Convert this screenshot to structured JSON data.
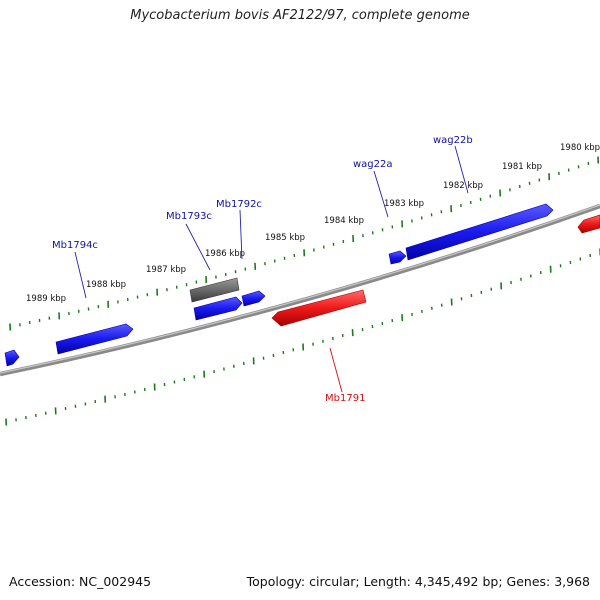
{
  "header": {
    "title": "Mycobacterium bovis AF2122/97, complete genome"
  },
  "footer": {
    "accession": "Accession: NC_002945",
    "summary": "Topology: circular; Length: 4,345,492 bp; Genes: 3,968"
  },
  "colors": {
    "forward_gene": "#1010ee",
    "reverse_gene": "#ee1111",
    "selected_gene": "#666666",
    "tick": "#1a7a1a",
    "backbone": "#8a8a8a",
    "label_forward": "#1010aa",
    "label_reverse": "#cc1111"
  },
  "scale_labels": [
    {
      "text": "1989 kbp"
    },
    {
      "text": "1988 kbp"
    },
    {
      "text": "1987 kbp"
    },
    {
      "text": "1986 kbp"
    },
    {
      "text": "1985 kbp"
    },
    {
      "text": "1984 kbp"
    },
    {
      "text": "1983 kbp"
    },
    {
      "text": "1982 kbp"
    },
    {
      "text": "1981 kbp"
    },
    {
      "text": "1980 kbp"
    }
  ],
  "gene_labels": [
    {
      "text": "Mb1794c",
      "strand": "forward"
    },
    {
      "text": "Mb1793c",
      "strand": "forward"
    },
    {
      "text": "Mb1792c",
      "strand": "forward"
    },
    {
      "text": "wag22a",
      "strand": "forward"
    },
    {
      "text": "wag22b",
      "strand": "forward"
    },
    {
      "text": "Mb1791",
      "strand": "reverse"
    }
  ]
}
